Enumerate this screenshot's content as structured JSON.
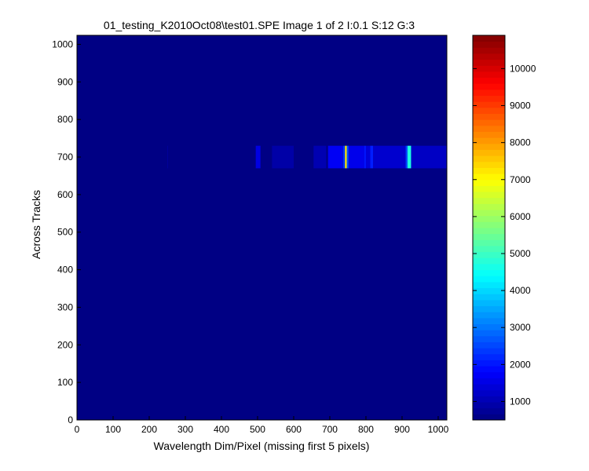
{
  "chart_data": {
    "type": "heatmap",
    "title": "01_testing_K2010Oct08\\test01.SPE  Image 1 of 2  I:0.1  S:12  G:3",
    "xlabel": "Wavelength Dim/Pixel (missing first 5 pixels)",
    "ylabel": "Across Tracks",
    "xlim": [
      0,
      1024
    ],
    "ylim": [
      0,
      1024
    ],
    "xticks": [
      0,
      100,
      200,
      300,
      400,
      500,
      600,
      700,
      800,
      900,
      1000
    ],
    "yticks": [
      0,
      100,
      200,
      300,
      400,
      500,
      600,
      700,
      800,
      900,
      1000
    ],
    "grid": false,
    "colormap": "jet",
    "colorbar": {
      "clim": [
        500,
        10900
      ],
      "ticks": [
        1000,
        2000,
        3000,
        4000,
        5000,
        6000,
        7000,
        8000,
        9000,
        10000
      ],
      "placement": "right"
    },
    "background_value": 550,
    "band": {
      "y_range": [
        670,
        730
      ],
      "features": [
        {
          "x": [
            250,
            252
          ],
          "value": 800
        },
        {
          "x": [
            495,
            508
          ],
          "value": 1500
        },
        {
          "x": [
            540,
            600
          ],
          "value": 900
        },
        {
          "x": [
            655,
            690
          ],
          "value": 1000
        },
        {
          "x": [
            695,
            735
          ],
          "value": 1700
        },
        {
          "x": [
            736,
            742
          ],
          "value": 2300
        },
        {
          "x": [
            742,
            747
          ],
          "value": 7200
        },
        {
          "x": [
            747,
            752
          ],
          "value": 2600
        },
        {
          "x": [
            752,
            795
          ],
          "value": 1600
        },
        {
          "x": [
            795,
            800
          ],
          "value": 2000
        },
        {
          "x": [
            800,
            812
          ],
          "value": 1400
        },
        {
          "x": [
            812,
            820
          ],
          "value": 2100
        },
        {
          "x": [
            820,
            910
          ],
          "value": 1300
        },
        {
          "x": [
            910,
            915
          ],
          "value": 2500
        },
        {
          "x": [
            915,
            925
          ],
          "value": 4700
        },
        {
          "x": [
            925,
            1024
          ],
          "value": 1200
        }
      ]
    }
  }
}
